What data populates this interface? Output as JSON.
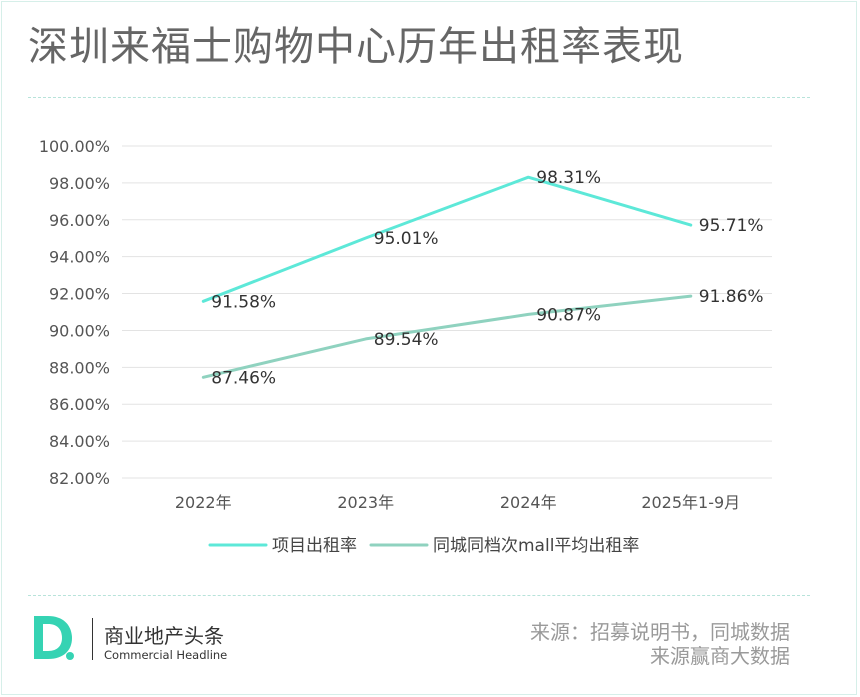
{
  "title": "深圳来福士购物中心历年出租率表现",
  "colors": {
    "series1": "#5de8d8",
    "series2": "#8fd2bf",
    "title": "#666666",
    "accent": "#35d3b3"
  },
  "chart_data": {
    "type": "line",
    "categories": [
      "2022年",
      "2023年",
      "2024年",
      "2025年1-9月"
    ],
    "ylim": [
      82,
      100
    ],
    "ytick_step": 2,
    "ytick_labels": [
      "100.00%",
      "98.00%",
      "96.00%",
      "94.00%",
      "92.00%",
      "90.00%",
      "88.00%",
      "86.00%",
      "84.00%",
      "82.00%"
    ],
    "grid": true,
    "legend_position": "bottom",
    "series": [
      {
        "name": "项目出租率",
        "values": [
          91.58,
          95.01,
          98.31,
          95.71
        ],
        "labels": [
          "91.58%",
          "95.01%",
          "98.31%",
          "95.71%"
        ]
      },
      {
        "name": "同城同档次mall平均出租率",
        "values": [
          87.46,
          89.54,
          90.87,
          91.86
        ],
        "labels": [
          "87.46%",
          "89.54%",
          "90.87%",
          "91.86%"
        ]
      }
    ]
  },
  "brand": {
    "logo_letter": "D",
    "name_cn": "商业地产头条",
    "name_en": "Commercial Headline"
  },
  "source": {
    "line1": "来源：招募说明书，同城数据",
    "line2": "来源赢商大数据"
  }
}
